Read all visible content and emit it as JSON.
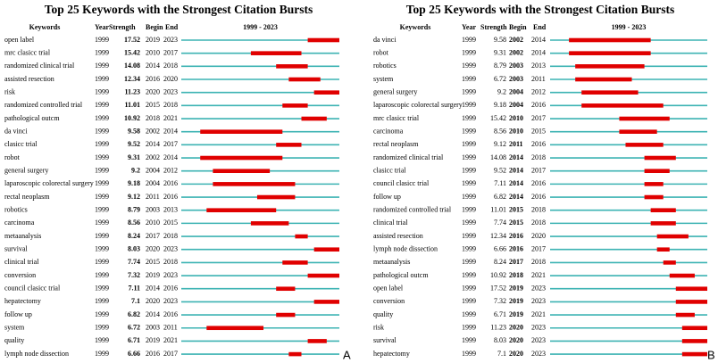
{
  "panels": [
    {
      "title": "Top 25 Keywords with the Strongest Citation Bursts",
      "letter": "A",
      "headers": [
        "Keywords",
        "Year",
        "Strength",
        "Begin",
        "End"
      ],
      "timeline_label": "1999 - 2023",
      "timeline_range": [
        1999,
        2023
      ],
      "rows": [
        [
          "open label",
          1999,
          17.52,
          2019,
          2023
        ],
        [
          "mrc clasicc trial",
          1999,
          15.42,
          2010,
          2017
        ],
        [
          "randomized clinical trial",
          1999,
          14.08,
          2014,
          2018
        ],
        [
          "assisted resection",
          1999,
          12.34,
          2016,
          2020
        ],
        [
          "risk",
          1999,
          11.23,
          2020,
          2023
        ],
        [
          "randomized controlled trial",
          1999,
          11.01,
          2015,
          2018
        ],
        [
          "pathological outcm",
          1999,
          10.92,
          2018,
          2021
        ],
        [
          "da vinci",
          1999,
          9.58,
          2002,
          2014
        ],
        [
          "clasicc trial",
          1999,
          9.52,
          2014,
          2017
        ],
        [
          "robot",
          1999,
          9.31,
          2002,
          2014
        ],
        [
          "general surgery",
          1999,
          9.2,
          2004,
          2012
        ],
        [
          "laparoscopic colorectal surgery",
          1999,
          9.18,
          2004,
          2016
        ],
        [
          "rectal neoplasm",
          1999,
          9.12,
          2011,
          2016
        ],
        [
          "robotics",
          1999,
          8.79,
          2003,
          2013
        ],
        [
          "carcinoma",
          1999,
          8.56,
          2010,
          2015
        ],
        [
          "metaanalysis",
          1999,
          8.24,
          2017,
          2018
        ],
        [
          "survival",
          1999,
          8.03,
          2020,
          2023
        ],
        [
          "clinical trial",
          1999,
          7.74,
          2015,
          2018
        ],
        [
          "conversion",
          1999,
          7.32,
          2019,
          2023
        ],
        [
          "council clasicc trial",
          1999,
          7.11,
          2014,
          2016
        ],
        [
          "hepatectomy",
          1999,
          7.1,
          2020,
          2023
        ],
        [
          "follow up",
          1999,
          6.82,
          2014,
          2016
        ],
        [
          "system",
          1999,
          6.72,
          2003,
          2011
        ],
        [
          "quality",
          1999,
          6.71,
          2019,
          2021
        ],
        [
          "lymph node dissection",
          1999,
          6.66,
          2016,
          2017
        ]
      ]
    },
    {
      "title": "Top 25 Keywords with the Strongest Citation Bursts",
      "letter": "B",
      "headers": [
        "Keywords",
        "Year",
        "Strength",
        "Begin",
        "End"
      ],
      "timeline_label": "1999 - 2023",
      "timeline_range": [
        1999,
        2023
      ],
      "rows": [
        [
          "da vinci",
          1999,
          9.58,
          2002,
          2014
        ],
        [
          "robot",
          1999,
          9.31,
          2002,
          2014
        ],
        [
          "robotics",
          1999,
          8.79,
          2003,
          2013
        ],
        [
          "system",
          1999,
          6.72,
          2003,
          2011
        ],
        [
          "general surgery",
          1999,
          9.2,
          2004,
          2012
        ],
        [
          "laparoscopic colorectal surgery",
          1999,
          9.18,
          2004,
          2016
        ],
        [
          "mrc clasicc trial",
          1999,
          15.42,
          2010,
          2017
        ],
        [
          "carcinoma",
          1999,
          8.56,
          2010,
          2015
        ],
        [
          "rectal neoplasm",
          1999,
          9.12,
          2011,
          2016
        ],
        [
          "randomized clinical trial",
          1999,
          14.08,
          2014,
          2018
        ],
        [
          "clasicc trial",
          1999,
          9.52,
          2014,
          2017
        ],
        [
          "council clasicc trial",
          1999,
          7.11,
          2014,
          2016
        ],
        [
          "follow up",
          1999,
          6.82,
          2014,
          2016
        ],
        [
          "randomized controlled trial",
          1999,
          11.01,
          2015,
          2018
        ],
        [
          "clinical trial",
          1999,
          7.74,
          2015,
          2018
        ],
        [
          "assisted resection",
          1999,
          12.34,
          2016,
          2020
        ],
        [
          "lymph node dissection",
          1999,
          6.66,
          2016,
          2017
        ],
        [
          "metaanalysis",
          1999,
          8.24,
          2017,
          2018
        ],
        [
          "pathological outcm",
          1999,
          10.92,
          2018,
          2021
        ],
        [
          "open label",
          1999,
          17.52,
          2019,
          2023
        ],
        [
          "conversion",
          1999,
          7.32,
          2019,
          2023
        ],
        [
          "quality",
          1999,
          6.71,
          2019,
          2021
        ],
        [
          "risk",
          1999,
          11.23,
          2020,
          2023
        ],
        [
          "survival",
          1999,
          8.03,
          2020,
          2023
        ],
        [
          "hepatectomy",
          1999,
          7.1,
          2020,
          2023
        ]
      ]
    }
  ]
}
